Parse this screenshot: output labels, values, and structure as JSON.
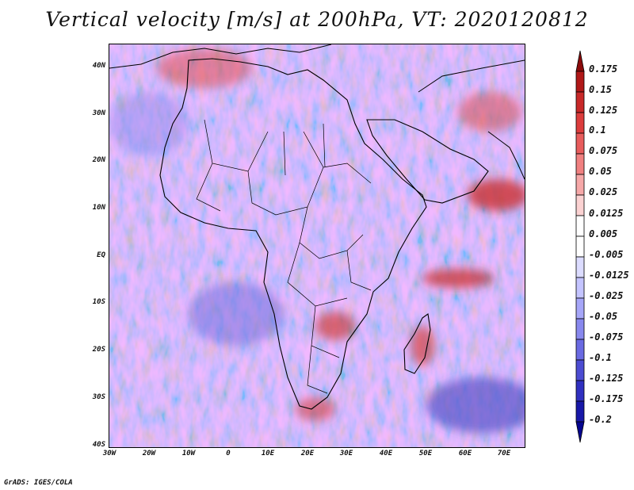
{
  "title": "Vertical velocity [m/s] at 200hPa, VT: 2020120812",
  "footer": "GrADS: IGES/COLA",
  "map": {
    "lat_labels": [
      "40N",
      "30N",
      "20N",
      "10N",
      "EQ",
      "10S",
      "20S",
      "30S",
      "40S"
    ],
    "lon_labels": [
      "30W",
      "20W",
      "10W",
      "0",
      "10E",
      "20E",
      "30E",
      "40E",
      "50E",
      "60E",
      "70E"
    ],
    "lat_range": [
      -40,
      45
    ],
    "lon_range": [
      -30,
      75
    ],
    "background_pattern": "noisy alternating upward (red) and downward (blue) vertical velocity filaments"
  },
  "colorbar": {
    "labels": [
      "0.175",
      "0.15",
      "0.125",
      "0.1",
      "0.075",
      "0.05",
      "0.025",
      "0.0125",
      "0.005",
      "-0.005",
      "-0.0125",
      "-0.025",
      "-0.05",
      "-0.075",
      "-0.1",
      "-0.125",
      "-0.175",
      "-0.2"
    ],
    "colors": [
      "#8b0a0a",
      "#b01818",
      "#c82828",
      "#dc3c3c",
      "#e85c5c",
      "#f08080",
      "#f6a8a8",
      "#fbd2d2",
      "#ffffff",
      "#ffffff",
      "#dcdcff",
      "#c4c4ff",
      "#a6a6f8",
      "#8888ee",
      "#6a6ae2",
      "#4c4cd2",
      "#3030c0",
      "#1818a8",
      "#050590"
    ]
  }
}
